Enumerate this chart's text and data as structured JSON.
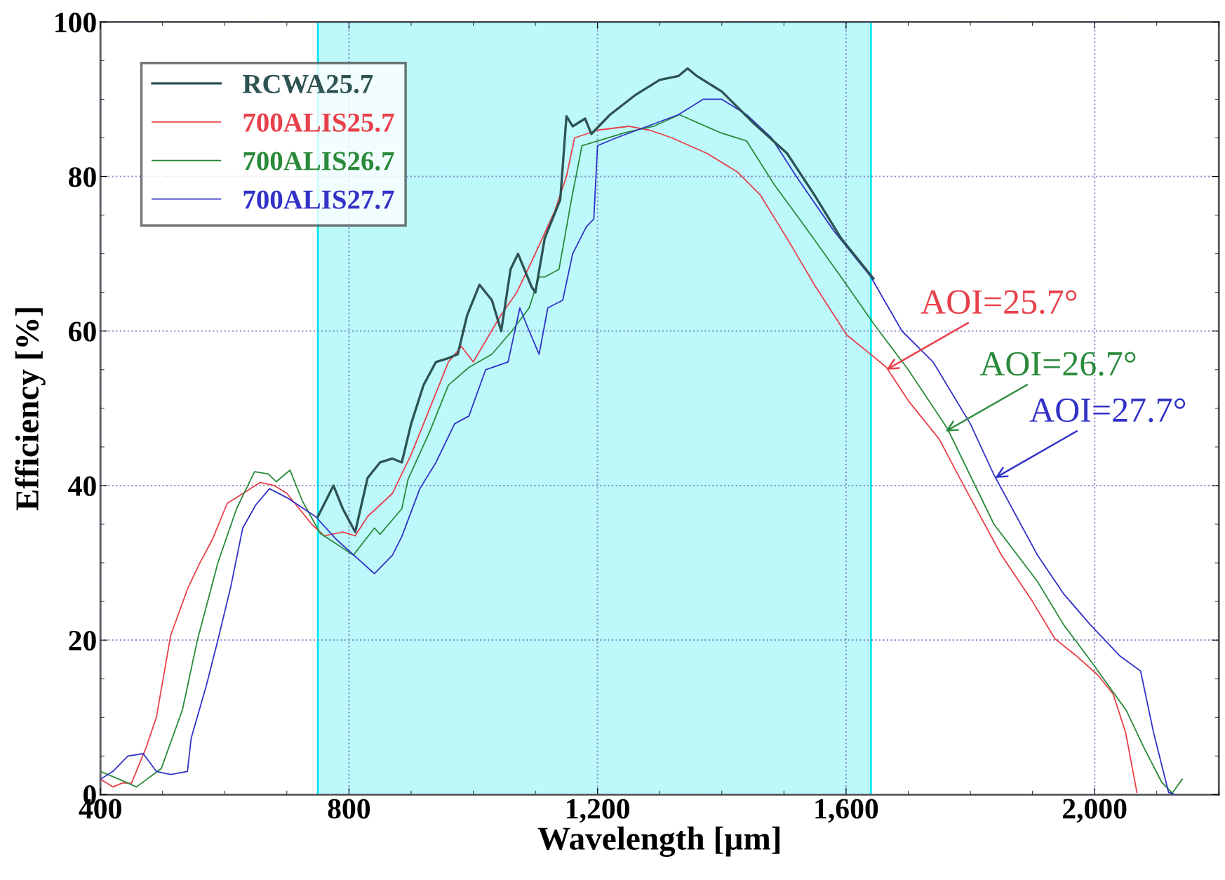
{
  "chart_data": {
    "type": "line",
    "xlabel": "Wavelength [µm]",
    "ylabel": "Efficiency [%]",
    "xlim": [
      400,
      2200
    ],
    "ylim": [
      0,
      100
    ],
    "xticks": [
      400,
      800,
      {
        "value": 1200,
        "label": "1,200"
      },
      {
        "value": 1600,
        "label": "1,600"
      },
      {
        "value": 2000,
        "label": "2,000"
      }
    ],
    "yticks": [
      0,
      20,
      40,
      60,
      80,
      100
    ],
    "grid": true,
    "legend": "top left",
    "line_style": "solid",
    "marker": "none",
    "bands": [
      {
        "axis": "x",
        "from": 750,
        "to": 1640,
        "color": "#bdf9fa"
      }
    ],
    "annotations": [
      {
        "text": "AOI=25.7°",
        "x": 1665,
        "y": 55
      },
      {
        "text": "AOI=26.7°",
        "x": 1760,
        "y": 47
      },
      {
        "text": "AOI=27.7°",
        "x": 1840,
        "y": 41
      }
    ],
    "series": [
      {
        "name": "RCWA25.7",
        "color": "#2f5252",
        "x": [
          750,
          775,
          790,
          810,
          830,
          850,
          870,
          885,
          900,
          920,
          940,
          960,
          975,
          990,
          1010,
          1030,
          1045,
          1060,
          1072,
          1094,
          1100,
          1115,
          1130,
          1140,
          1150,
          1160,
          1180,
          1190,
          1220,
          1260,
          1300,
          1330,
          1345,
          1360,
          1400,
          1450,
          1505,
          1550,
          1592,
          1644
        ],
        "values": [
          36,
          40,
          37,
          34,
          41,
          43,
          43.5,
          43,
          48,
          53,
          56,
          56.5,
          57,
          62,
          66,
          64,
          60,
          68,
          70,
          65.7,
          65,
          72,
          75,
          77,
          87.8,
          86.5,
          87.5,
          85.5,
          88,
          90.5,
          92.5,
          93,
          94,
          93,
          91,
          87,
          83,
          77.5,
          72,
          66.8
        ]
      },
      {
        "name": "700ALIS25.7",
        "color": "#e8404a",
        "x": [
          400,
          420,
          435,
          450,
          473,
          490,
          513,
          541,
          560,
          580,
          604,
          620,
          657,
          680,
          700,
          720,
          740,
          760,
          790,
          810,
          830,
          870,
          900,
          930,
          960,
          981,
          1000,
          1044,
          1070,
          1094,
          1131,
          1150,
          1163,
          1200,
          1250,
          1284,
          1320,
          1376,
          1425,
          1462,
          1505,
          1549,
          1601,
          1644,
          1665,
          1700,
          1750,
          1786,
          1850,
          1900,
          1936,
          1970,
          2005,
          2030,
          2050,
          2068
        ],
        "values": [
          2,
          1,
          1.5,
          1.5,
          6,
          10,
          20.6,
          26.8,
          30,
          33,
          37.7,
          38.5,
          40.4,
          40,
          39,
          37,
          35,
          33.5,
          34,
          33.5,
          36,
          39,
          44,
          50,
          56,
          58,
          56,
          62,
          65,
          69,
          75.5,
          80,
          85,
          86,
          86.5,
          86,
          85,
          83,
          80.6,
          77.6,
          72,
          66,
          59.5,
          56.7,
          55.3,
          51,
          46,
          40.5,
          31,
          25,
          20.2,
          18,
          15.5,
          13,
          8,
          0.3
        ]
      },
      {
        "name": "700ALIS26.7",
        "color": "#2a8a3a",
        "x": [
          400,
          430,
          458,
          498,
          532,
          556,
          589,
          619,
          648,
          670,
          683,
          705,
          725,
          754,
          807,
          841,
          850,
          885,
          895,
          930,
          960,
          993,
          1030,
          1062,
          1090,
          1106,
          1115,
          1138,
          1158,
          1175,
          1245,
          1290,
          1332,
          1397,
          1440,
          1484,
          1526,
          1592,
          1644,
          1700,
          1763,
          1838,
          1908,
          1950,
          1993,
          2051,
          2080,
          2108,
          2125,
          2141
        ],
        "values": [
          3,
          2,
          1,
          3.4,
          11,
          20,
          30,
          37,
          41.8,
          41.5,
          40.5,
          42,
          38,
          33.8,
          31,
          34.5,
          33.7,
          37,
          40.8,
          47,
          53,
          55.3,
          57,
          60,
          63,
          67,
          67,
          68,
          77,
          84,
          85.7,
          86.5,
          88,
          85.7,
          84.6,
          79,
          74.4,
          67,
          61,
          55,
          47.4,
          35,
          27.6,
          22,
          17.4,
          10.9,
          6,
          1.6,
          0.2,
          2
        ]
      },
      {
        "name": "700ALIS27.7",
        "color": "#3232c8",
        "x": [
          400,
          420,
          444,
          469,
          490,
          513,
          540,
          546,
          570,
          589,
          610,
          629,
          650,
          672,
          701,
          746,
          780,
          841,
          870,
          885,
          914,
          940,
          970,
          993,
          1020,
          1056,
          1075,
          1090,
          1106,
          1120,
          1144,
          1160,
          1182,
          1194,
          1200,
          1230,
          1280,
          1330,
          1370,
          1400,
          1440,
          1480,
          1520,
          1580,
          1640,
          1690,
          1740,
          1800,
          1838,
          1908,
          1950,
          1993,
          2040,
          2074,
          2095,
          2119,
          2130
        ],
        "values": [
          2,
          3,
          5,
          5.3,
          3,
          2.6,
          3,
          7.3,
          14,
          20,
          27,
          34.5,
          37.5,
          39.6,
          38.4,
          36,
          33,
          28.6,
          31,
          33.4,
          39.6,
          43,
          48,
          49,
          55,
          56,
          63,
          60,
          57,
          63,
          64,
          70,
          73.5,
          74.5,
          84,
          85,
          86.5,
          88,
          90,
          90,
          88,
          85,
          80,
          73,
          67,
          60,
          56,
          48,
          41.4,
          31,
          26,
          22,
          18,
          16,
          8,
          0.3,
          0
        ]
      }
    ]
  }
}
